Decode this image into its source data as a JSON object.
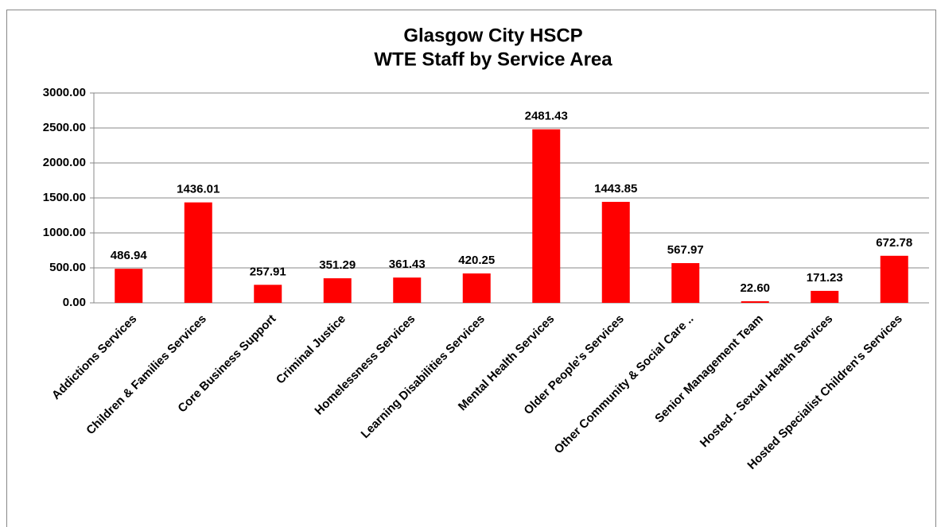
{
  "chart_data": {
    "type": "bar",
    "title": "Glasgow City HSCP",
    "subtitle": "WTE Staff by Service Area",
    "categories": [
      "Addictions Services",
      "Children & Families Services",
      "Core Business Support",
      "Criminal Justice",
      "Homelessness Services",
      "Learning Disabilities Services",
      "Mental Health Services",
      "Older People's Services",
      "Other Community & Social Care ..",
      "Senior Management Team",
      "Hosted - Sexual Health Services",
      "Hosted Specialist Children's Services"
    ],
    "values": [
      486.94,
      1436.01,
      257.91,
      351.29,
      361.43,
      420.25,
      2481.43,
      1443.85,
      567.97,
      22.6,
      171.23,
      672.78
    ],
    "value_labels": [
      "486.94",
      "1436.01",
      "257.91",
      "351.29",
      "361.43",
      "420.25",
      "2481.43",
      "1443.85",
      "567.97",
      "22.60",
      "171.23",
      "672.78"
    ],
    "color": "#ff0000",
    "ylim": [
      0,
      3000
    ],
    "yticks": [
      {
        "value": 0,
        "label": "0.00"
      },
      {
        "value": 500,
        "label": "500.00"
      },
      {
        "value": 1000,
        "label": "1000.00"
      },
      {
        "value": 1500,
        "label": "1500.00"
      },
      {
        "value": 2000,
        "label": "2000.00"
      },
      {
        "value": 2500,
        "label": "2500.00"
      },
      {
        "value": 3000,
        "label": "3000.00"
      }
    ],
    "grid": true
  }
}
